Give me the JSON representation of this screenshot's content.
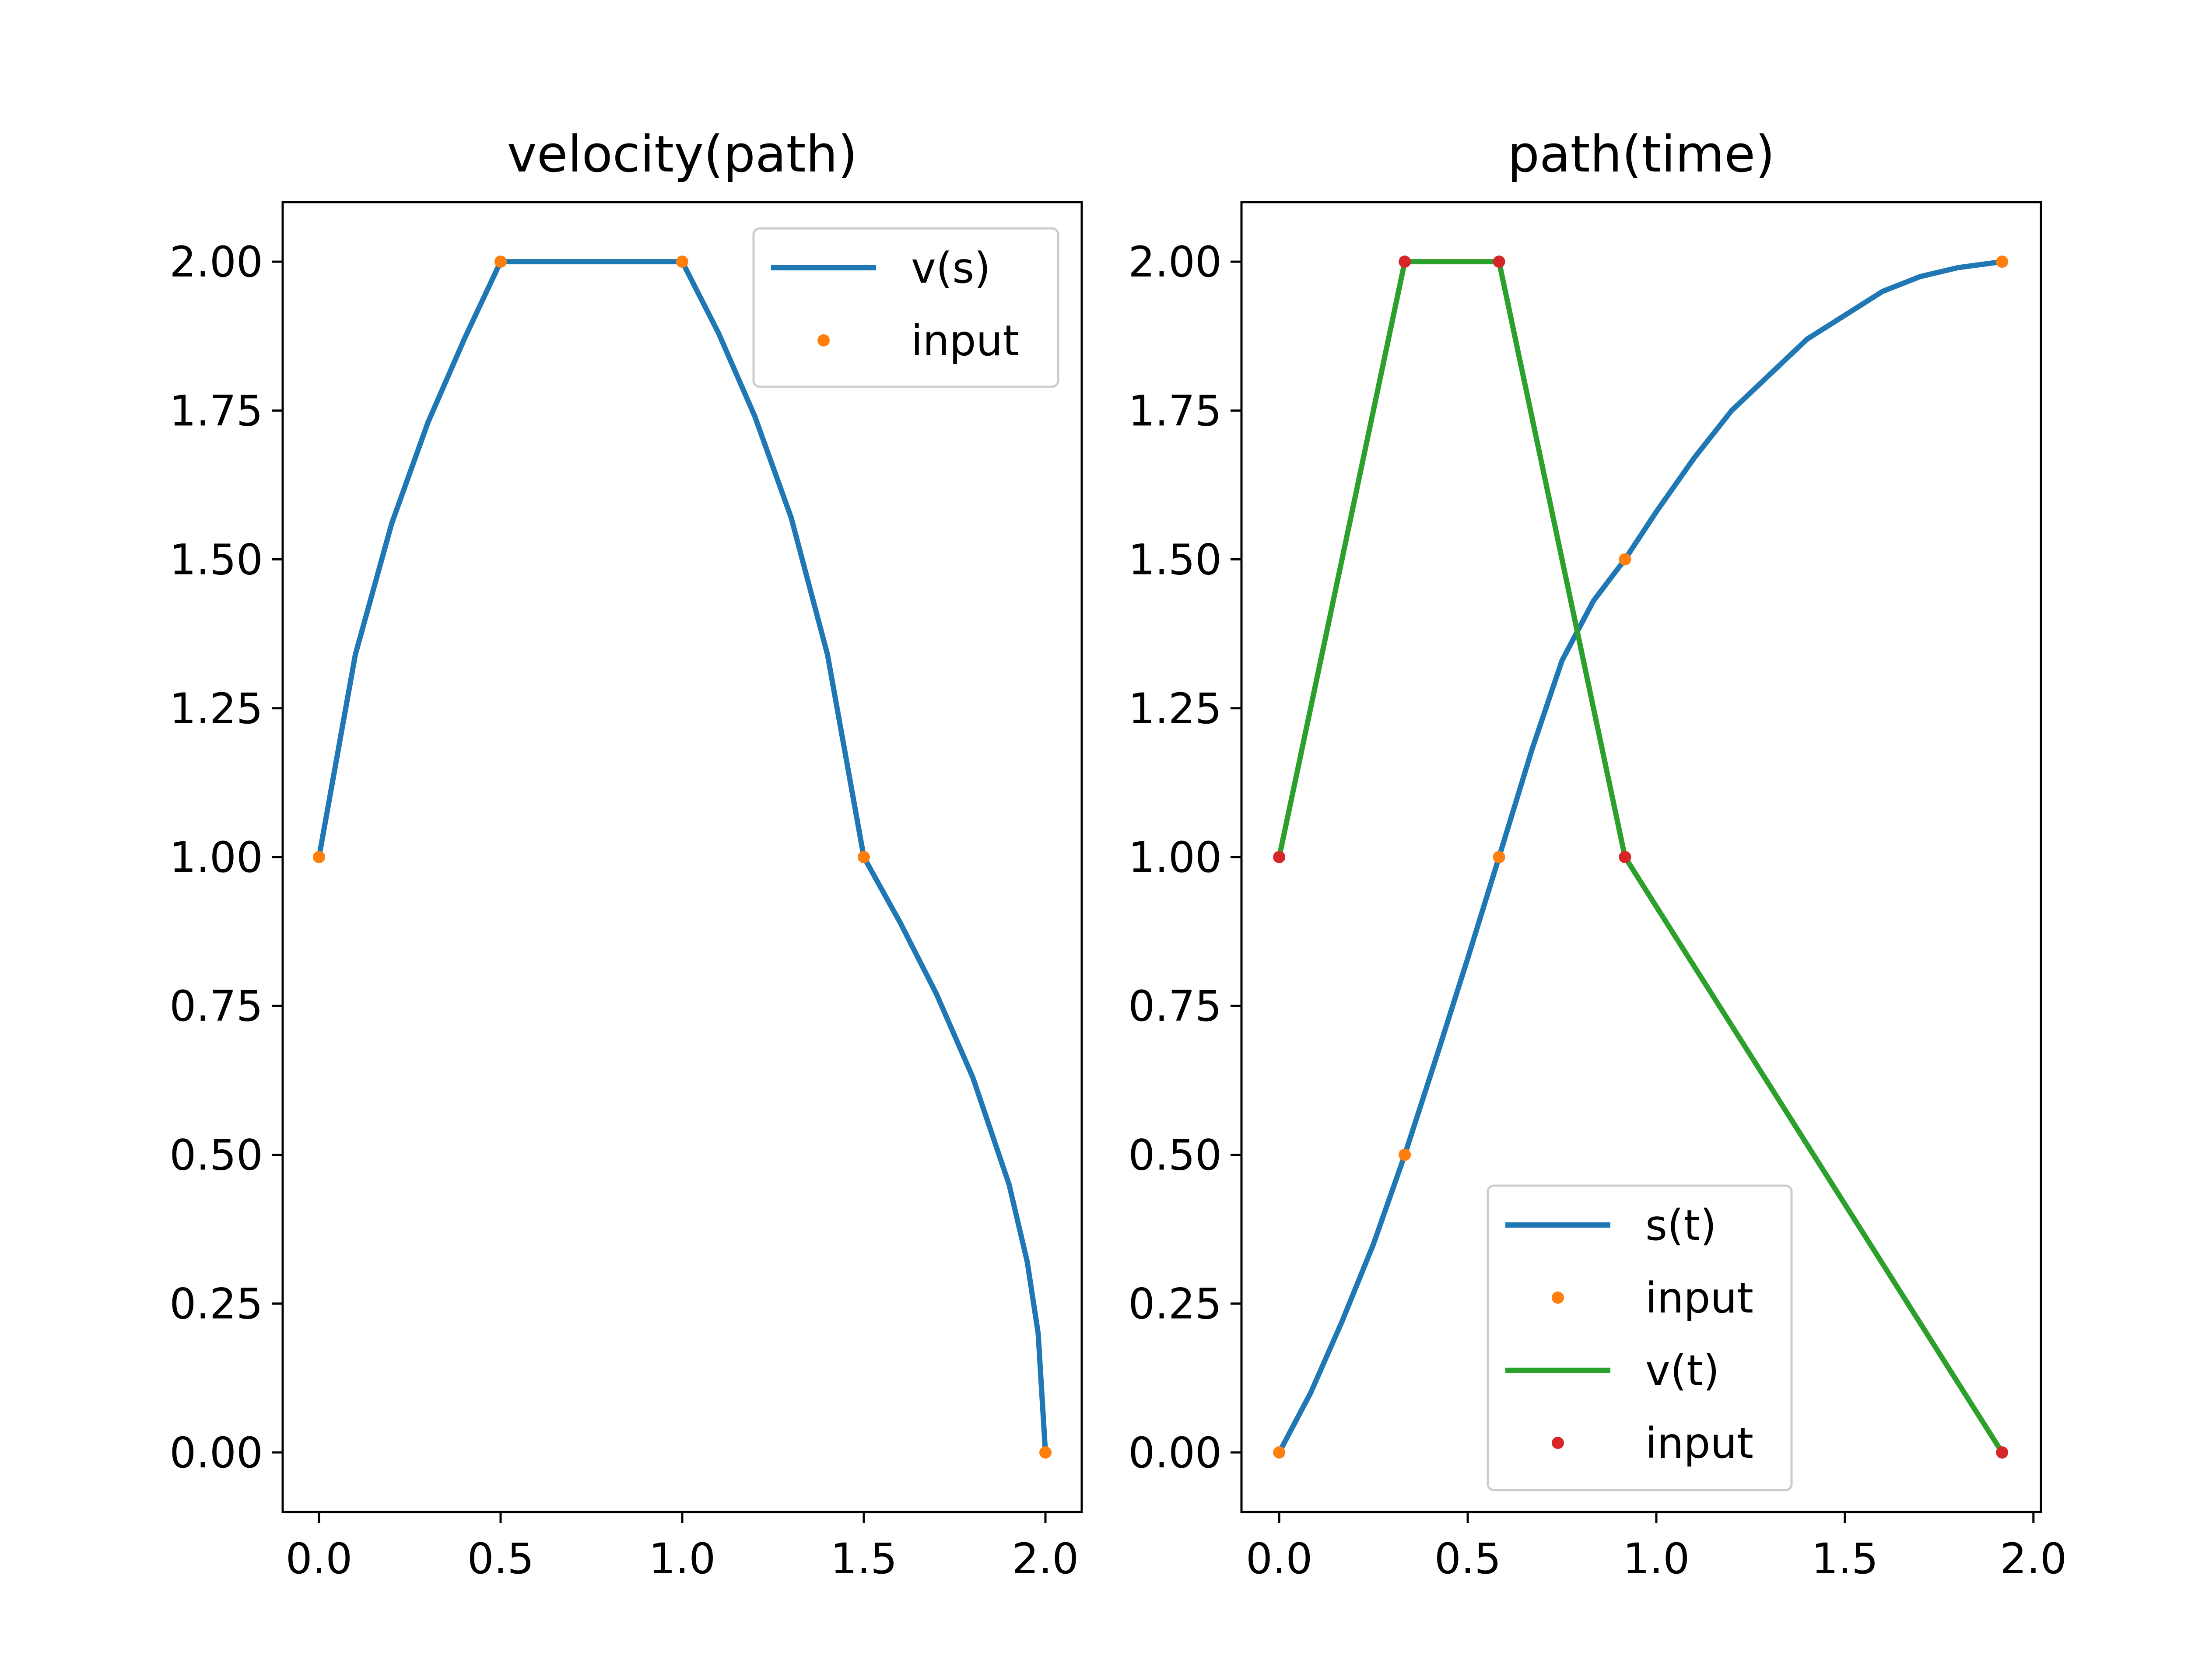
{
  "chart_data": [
    {
      "type": "line",
      "title": "velocity(path)",
      "xlim": [
        -0.1,
        2.1
      ],
      "ylim": [
        -0.1,
        2.1
      ],
      "xticks": [
        "0.0",
        "0.5",
        "1.0",
        "1.5",
        "2.0"
      ],
      "yticks": [
        "0.00",
        "0.25",
        "0.50",
        "0.75",
        "1.00",
        "1.25",
        "1.50",
        "1.75",
        "2.00"
      ],
      "grid": false,
      "legend_position": "top-right",
      "series": [
        {
          "name": "v(s)",
          "kind": "line",
          "color": "#1f77b4",
          "points": [
            [
              0,
              1
            ],
            [
              0.1,
              1.34
            ],
            [
              0.2,
              1.56
            ],
            [
              0.3,
              1.73
            ],
            [
              0.4,
              1.87
            ],
            [
              0.5,
              2
            ],
            [
              1.0,
              2
            ],
            [
              1.1,
              1.88
            ],
            [
              1.2,
              1.74
            ],
            [
              1.3,
              1.57
            ],
            [
              1.4,
              1.34
            ],
            [
              1.5,
              1
            ],
            [
              1.6,
              0.89
            ],
            [
              1.7,
              0.77
            ],
            [
              1.8,
              0.63
            ],
            [
              1.9,
              0.45
            ],
            [
              1.95,
              0.32
            ],
            [
              1.98,
              0.2
            ],
            [
              2.0,
              0
            ]
          ]
        },
        {
          "name": "input",
          "kind": "scatter",
          "color": "#ff7f0e",
          "points": [
            [
              0,
              1
            ],
            [
              0.5,
              2
            ],
            [
              1.0,
              2
            ],
            [
              1.5,
              1
            ],
            [
              2.0,
              0
            ]
          ]
        }
      ]
    },
    {
      "type": "line",
      "title": "path(time)",
      "xlim": [
        -0.1,
        2.02
      ],
      "ylim": [
        -0.1,
        2.1
      ],
      "xticks": [
        "0.0",
        "0.5",
        "1.0",
        "1.5",
        "2.0"
      ],
      "yticks": [
        "0.00",
        "0.25",
        "0.50",
        "0.75",
        "1.00",
        "1.25",
        "1.50",
        "1.75",
        "2.00"
      ],
      "grid": false,
      "legend_position": "lower-center",
      "series": [
        {
          "name": "s(t)",
          "kind": "line",
          "color": "#1f77b4",
          "points": [
            [
              0,
              0
            ],
            [
              0.0833,
              0.1
            ],
            [
              0.1667,
              0.22
            ],
            [
              0.25,
              0.35
            ],
            [
              0.333,
              0.5
            ],
            [
              0.42,
              0.67
            ],
            [
              0.5,
              0.83
            ],
            [
              0.583,
              1.0
            ],
            [
              0.67,
              1.18
            ],
            [
              0.75,
              1.33
            ],
            [
              0.833,
              1.43
            ],
            [
              0.917,
              1.5
            ],
            [
              1.0,
              1.58
            ],
            [
              1.1,
              1.67
            ],
            [
              1.2,
              1.75
            ],
            [
              1.3,
              1.81
            ],
            [
              1.4,
              1.87
            ],
            [
              1.5,
              1.91
            ],
            [
              1.6,
              1.95
            ],
            [
              1.7,
              1.975
            ],
            [
              1.8,
              1.99
            ],
            [
              1.917,
              2.0
            ]
          ]
        },
        {
          "name": "input",
          "kind": "scatter",
          "color": "#ff7f0e",
          "points": [
            [
              0,
              0
            ],
            [
              0.333,
              0.5
            ],
            [
              0.583,
              1.0
            ],
            [
              0.917,
              1.5
            ],
            [
              1.917,
              2.0
            ]
          ]
        },
        {
          "name": "v(t)",
          "kind": "line",
          "color": "#2ca02c",
          "points": [
            [
              0,
              1
            ],
            [
              0.333,
              2
            ],
            [
              0.583,
              2
            ],
            [
              0.917,
              1
            ],
            [
              1.917,
              0
            ]
          ]
        },
        {
          "name": "input",
          "kind": "scatter",
          "color": "#d62728",
          "points": [
            [
              0,
              1
            ],
            [
              0.333,
              2
            ],
            [
              0.583,
              2
            ],
            [
              0.917,
              1
            ],
            [
              1.917,
              0
            ]
          ]
        }
      ]
    }
  ]
}
